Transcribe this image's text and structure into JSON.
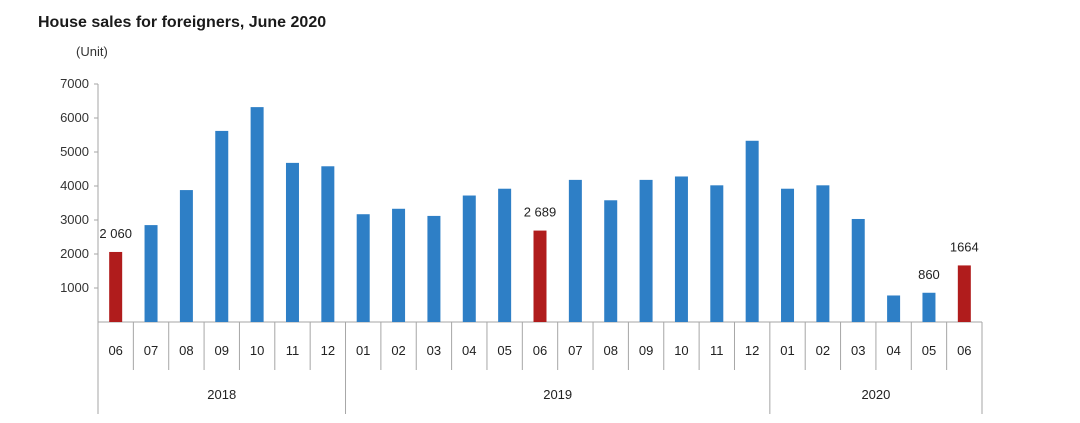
{
  "chart_data": {
    "type": "bar",
    "title": "House sales for foreigners, June 2020",
    "ylabel": "(Unit)",
    "ylim": [
      0,
      7000
    ],
    "yticks": [
      "1000",
      "2000",
      "3000",
      "4000",
      "5000",
      "6000",
      "7000"
    ],
    "categories": [
      "06",
      "07",
      "08",
      "09",
      "10",
      "11",
      "12",
      "01",
      "02",
      "03",
      "04",
      "05",
      "06",
      "07",
      "08",
      "09",
      "10",
      "11",
      "12",
      "01",
      "02",
      "03",
      "04",
      "05",
      "06"
    ],
    "years": [
      {
        "label": "2018",
        "start": 0,
        "end": 6
      },
      {
        "label": "2019",
        "start": 7,
        "end": 18
      },
      {
        "label": "2020",
        "start": 19,
        "end": 24
      }
    ],
    "values": [
      2060,
      2850,
      3880,
      5620,
      6320,
      4680,
      4580,
      3170,
      3330,
      3120,
      3720,
      3920,
      2689,
      4180,
      3580,
      4180,
      4280,
      4020,
      5330,
      3920,
      4020,
      3030,
      780,
      860,
      1664
    ],
    "highlight_indices": [
      0,
      12,
      24
    ],
    "data_labels": [
      {
        "index": 0,
        "text": "2 060"
      },
      {
        "index": 12,
        "text": "2 689"
      },
      {
        "index": 23,
        "text": "860"
      },
      {
        "index": 24,
        "text": "1664"
      }
    ],
    "colors": {
      "bar": "#2e7fc6",
      "highlight": "#b01c1c",
      "axis": "#a6a6a6"
    },
    "grid": false,
    "legend": "none"
  }
}
